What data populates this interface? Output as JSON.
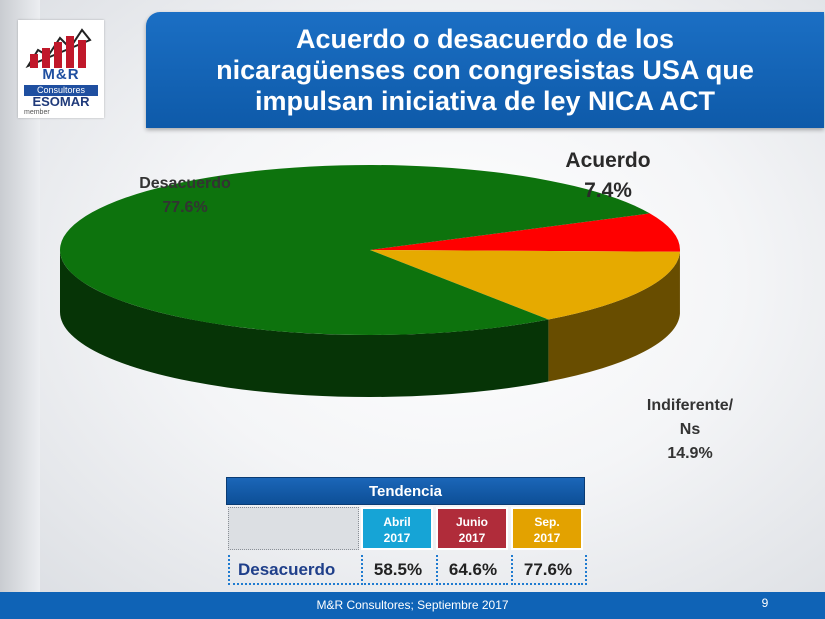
{
  "header": {
    "title": "Acuerdo o desacuerdo de los\nnicaragüenses con congresistas USA que\nimpulsan iniciativa de ley NICA ACT"
  },
  "logo": {
    "brand": "M&R",
    "sub": "Consultores",
    "esomar": "ESOMAR",
    "member": "member"
  },
  "chart_data": {
    "type": "pie",
    "title": "Acuerdo o desacuerdo de los nicaragüenses con congresistas USA que impulsan iniciativa de ley NICA ACT",
    "slices": [
      {
        "label": "Desacuerdo",
        "value": 77.6,
        "display": "77.6%",
        "color": "#0d730d"
      },
      {
        "label": "Acuerdo",
        "value": 7.4,
        "display": "7.4%",
        "color": "#ff0000"
      },
      {
        "label": "Indiferente/\nNs",
        "value": 14.9,
        "display": "14.9%",
        "color": "#e6aa00"
      }
    ]
  },
  "tendencia": {
    "title": "Tendencia",
    "row_label": "Desacuerdo",
    "columns": [
      {
        "period": "Abril\n2017",
        "value": "58.5%",
        "color": "#16a4d6"
      },
      {
        "period": "Junio\n2017",
        "value": "64.6%",
        "color": "#b02c3a"
      },
      {
        "period": "Sep.\n2017",
        "value": "77.6%",
        "color": "#e3a200"
      }
    ]
  },
  "footer": {
    "source": "M&R Consultores; Septiembre 2017",
    "page": "9"
  }
}
